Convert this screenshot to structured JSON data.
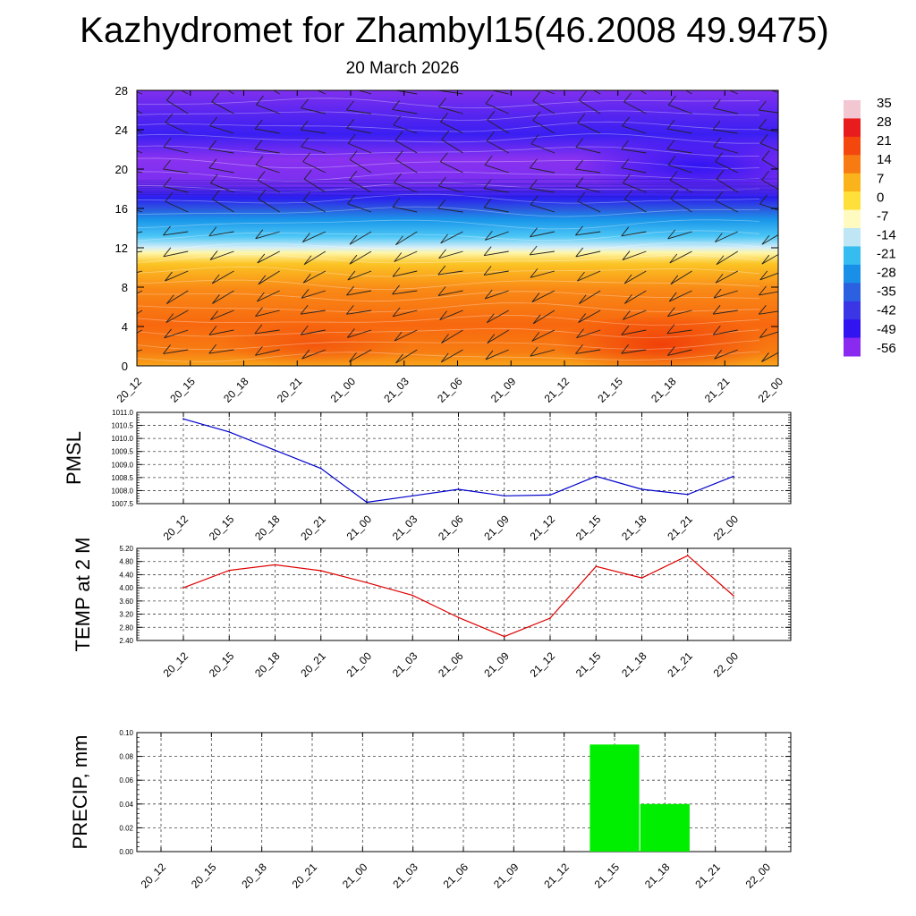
{
  "title": "Kazhydromet for Zhambyl15(46.2008 49.9475)",
  "subtitle": "20 March 2026",
  "time_labels": [
    "20_12",
    "20_15",
    "20_18",
    "20_21",
    "21_00",
    "21_03",
    "21_06",
    "21_09",
    "21_12",
    "21_15",
    "21_18",
    "21_21",
    "22_00"
  ],
  "chart_data": [
    {
      "type": "heatmap",
      "name": "cross-section",
      "description_text": "",
      "ylim": [
        0,
        28
      ],
      "yticks": [
        "0",
        "4",
        "8",
        "12",
        "16",
        "20",
        "24",
        "28"
      ],
      "colorbar_labels": [
        "35",
        "28",
        "21",
        "14",
        "7",
        "0",
        "-7",
        "-14",
        "-21",
        "-28",
        "-35",
        "-42",
        "-49",
        "-56"
      ],
      "colorbar_colors": [
        "#f3c7d2",
        "#e81c1c",
        "#f4470e",
        "#f77b12",
        "#fbb31c",
        "#ffe03a",
        "#fffac0",
        "#bfe6f5",
        "#35bdf2",
        "#1a8fe8",
        "#2b60e0",
        "#3a36e6",
        "#3214f0",
        "#8a2af0"
      ]
    },
    {
      "type": "line",
      "name": "pmsl",
      "ylabel": "PMSL",
      "ylim": [
        1007.5,
        1011.0
      ],
      "yticks": [
        "1007.5",
        "1008.0",
        "1008.5",
        "1009.0",
        "1009.5",
        "1010.0",
        "1010.5",
        "1011.0"
      ],
      "color": "#0000cc",
      "values": [
        1010.75,
        1010.25,
        1009.55,
        1008.85,
        1007.55,
        1007.8,
        1008.05,
        1007.8,
        1007.83,
        1008.55,
        1008.05,
        1007.85,
        1008.55
      ]
    },
    {
      "type": "line",
      "name": "temp",
      "ylabel": "TEMP at 2 M",
      "ylim": [
        2.4,
        5.2
      ],
      "yticks": [
        "2.40",
        "2.80",
        "3.20",
        "3.60",
        "4.00",
        "4.40",
        "4.80",
        "5.20"
      ],
      "color": "#dd0000",
      "values": [
        4.0,
        4.53,
        4.7,
        4.52,
        4.16,
        3.77,
        3.1,
        2.52,
        3.08,
        4.65,
        4.3,
        4.98,
        3.76
      ]
    },
    {
      "type": "bar",
      "name": "precip",
      "ylabel": "PRECIP, mm",
      "ylim": [
        0.0,
        0.1
      ],
      "yticks": [
        "0.00",
        "0.02",
        "0.04",
        "0.06",
        "0.08",
        "0.10"
      ],
      "color": "#00ee00",
      "values": [
        0,
        0,
        0,
        0,
        0,
        0,
        0,
        0,
        0,
        0.09,
        0.04,
        0,
        0
      ]
    }
  ]
}
